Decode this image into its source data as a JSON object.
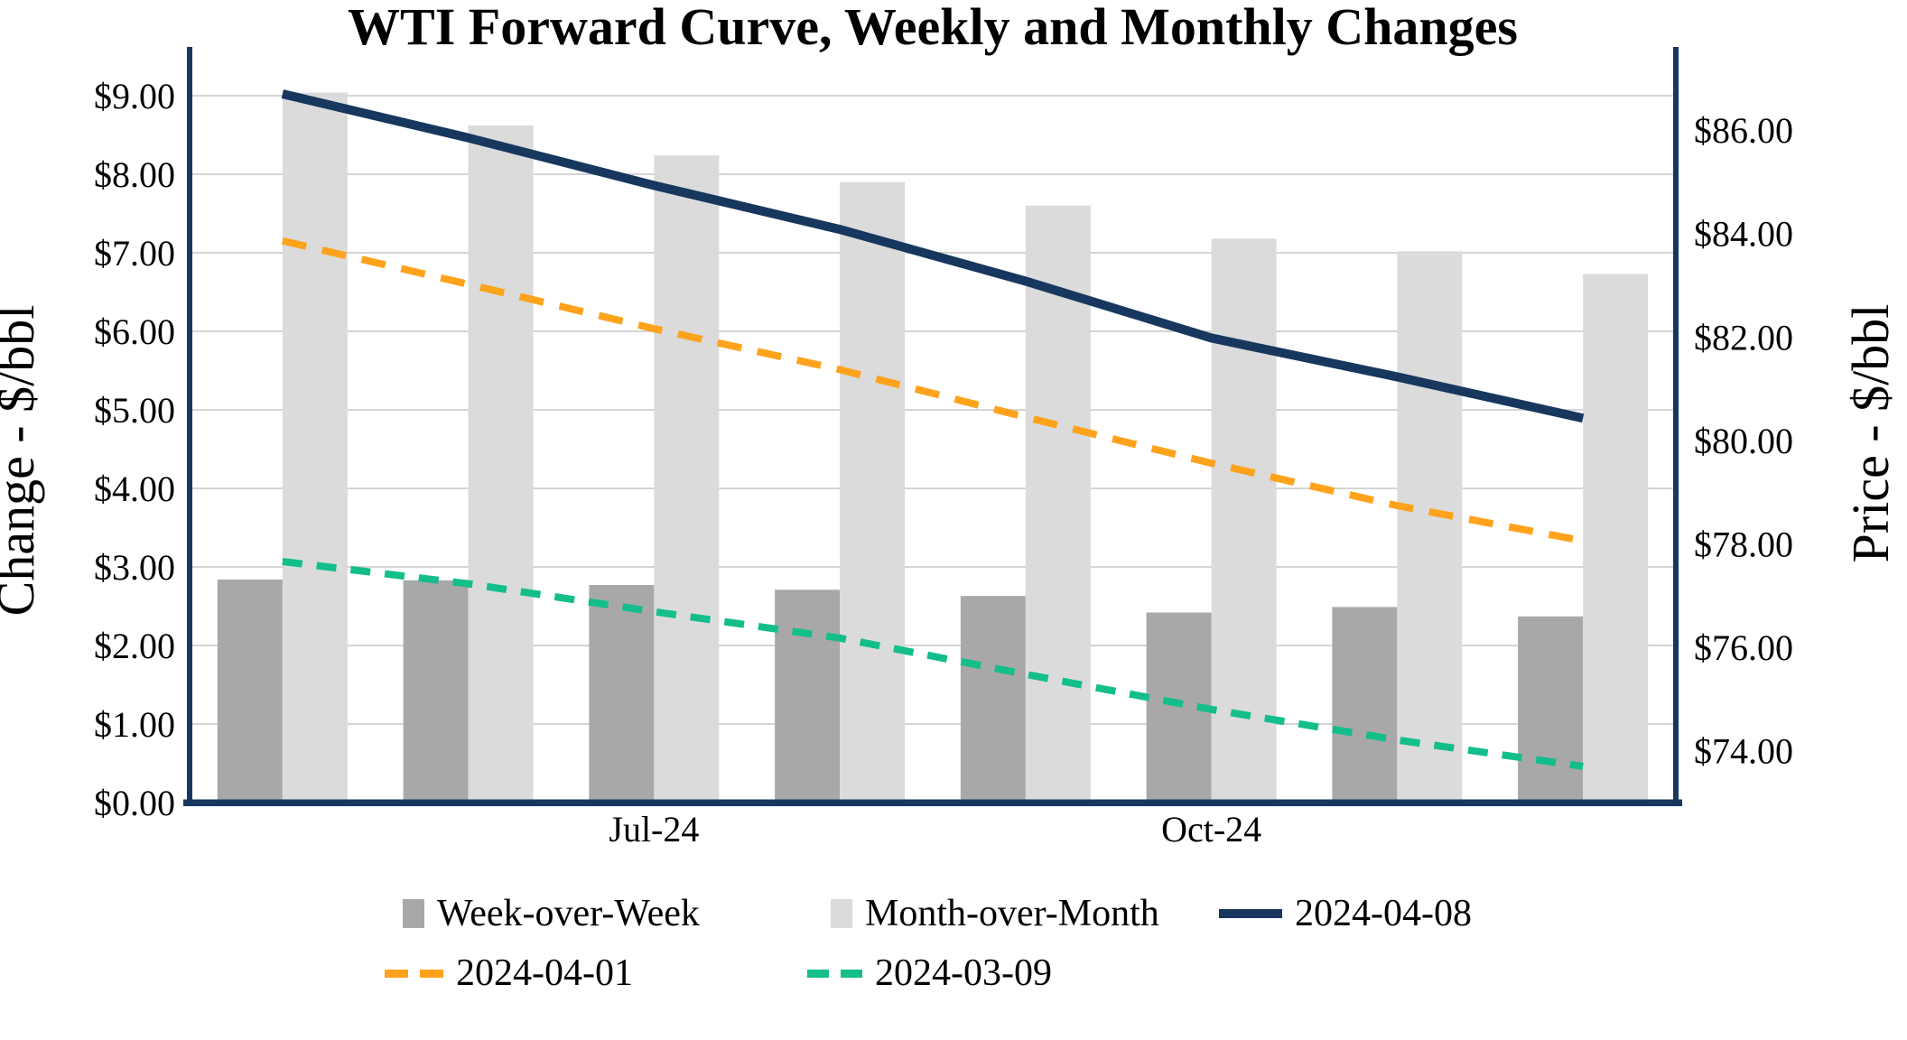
{
  "chart_data": {
    "type": "combo-bar-line",
    "title": "WTI Forward Curve, Weekly and Monthly Changes",
    "left_axis": {
      "title": "Change - $/bbl",
      "tick_labels": [
        "$9.00",
        "$8.00",
        "$7.00",
        "$6.00",
        "$5.00",
        "$4.00",
        "$3.00",
        "$2.00",
        "$1.00",
        "$0.00"
      ],
      "tick_values": [
        9,
        8,
        7,
        6,
        5,
        4,
        3,
        2,
        1,
        0
      ],
      "min": 0,
      "max": 9,
      "tick_step": 1,
      "grid": true
    },
    "right_axis": {
      "title": "Price - $/bbl",
      "tick_labels": [
        "$86.00",
        "$84.00",
        "$82.00",
        "$80.00",
        "$78.00",
        "$76.00",
        "$74.00"
      ],
      "tick_values": [
        86,
        84,
        82,
        80,
        78,
        76,
        74
      ]
    },
    "x_axis": {
      "group_count": 8,
      "visible_tick_labels": [
        {
          "label": "Jul-24",
          "group_index": 2
        },
        {
          "label": "Oct-24",
          "group_index": 5
        }
      ]
    },
    "bar_series": [
      {
        "name": "Week-over-Week",
        "color": "#A8A8A8",
        "axis": "left",
        "values": [
          2.84,
          2.83,
          2.77,
          2.71,
          2.63,
          2.42,
          2.49,
          2.37
        ]
      },
      {
        "name": "Month-over-Month",
        "color": "#DBDBDB",
        "axis": "left",
        "values": [
          9.04,
          8.62,
          8.24,
          7.9,
          7.6,
          7.18,
          7.02,
          6.73
        ]
      }
    ],
    "line_series": [
      {
        "name": "2024-04-08",
        "color": "#17375E",
        "style": "solid",
        "axis": "right",
        "values": [
          86.7,
          85.85,
          84.93,
          84.08,
          83.08,
          81.98,
          81.23,
          80.43
        ]
      },
      {
        "name": "2024-04-01",
        "color": "#FFA21C",
        "style": "dashed",
        "axis": "right",
        "values": [
          83.86,
          83.02,
          82.16,
          81.37,
          80.45,
          79.56,
          78.74,
          78.06
        ]
      },
      {
        "name": "2024-03-09",
        "color": "#13BE8B",
        "style": "dashed",
        "axis": "right",
        "values": [
          77.66,
          77.23,
          76.69,
          76.18,
          75.48,
          74.8,
          74.21,
          73.7
        ]
      }
    ],
    "colors": {
      "axis_frame": "#17375E",
      "gridline": "#D4D4D4",
      "text": "#000000"
    }
  }
}
